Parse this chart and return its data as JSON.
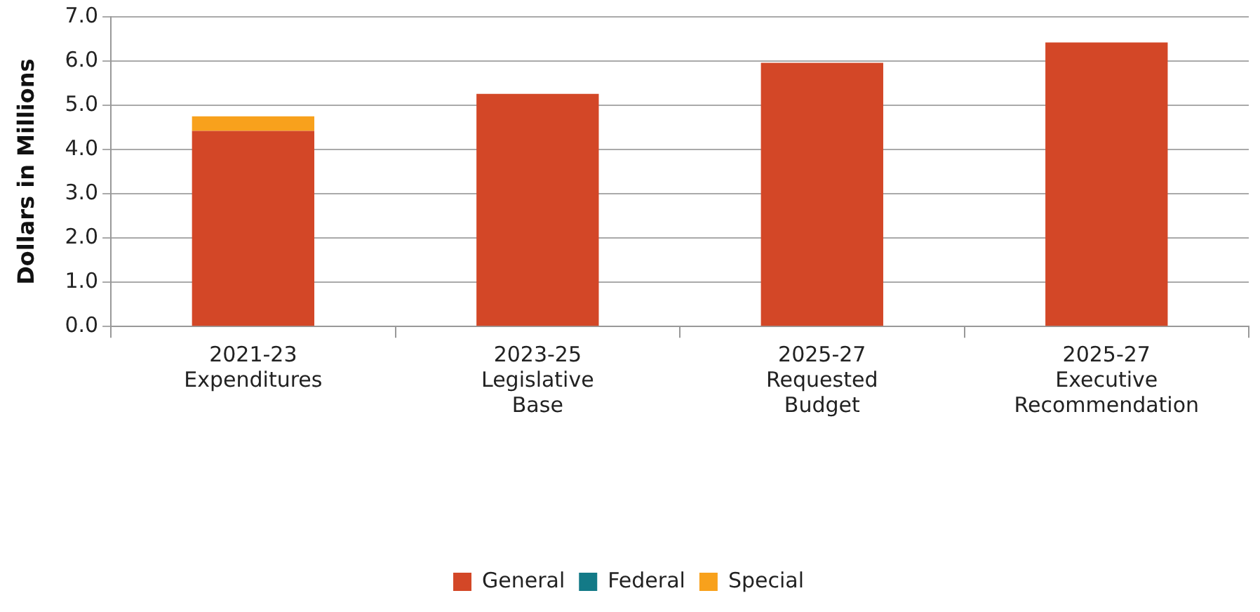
{
  "chart_data": {
    "type": "bar",
    "stacked": true,
    "ylabel": "Dollars in Millions",
    "categories": [
      "2021-23\nExpenditures",
      "2023-25\nLegislative\nBase",
      "2025-27\nRequested\nBudget",
      "2025-27\nExecutive\nRecommendation"
    ],
    "series": [
      {
        "name": "General",
        "color": "#d34727",
        "values": [
          4.42,
          5.26,
          5.96,
          6.42
        ]
      },
      {
        "name": "Federal",
        "color": "#137a87",
        "values": [
          0,
          0,
          0,
          0
        ]
      },
      {
        "name": "Special",
        "color": "#f8a11c",
        "values": [
          0.33,
          0,
          0,
          0
        ]
      }
    ],
    "ylim": [
      0,
      7
    ],
    "yticks": [
      {
        "value": 0,
        "label": "0.0"
      },
      {
        "value": 1,
        "label": "1.0"
      },
      {
        "value": 2,
        "label": "2.0"
      },
      {
        "value": 3,
        "label": "3.0"
      },
      {
        "value": 4,
        "label": "4.0"
      },
      {
        "value": 5,
        "label": "5.0"
      },
      {
        "value": 6,
        "label": "6.0"
      },
      {
        "value": 7,
        "label": "7.0"
      }
    ],
    "grid": "y",
    "legend": "bottom"
  }
}
